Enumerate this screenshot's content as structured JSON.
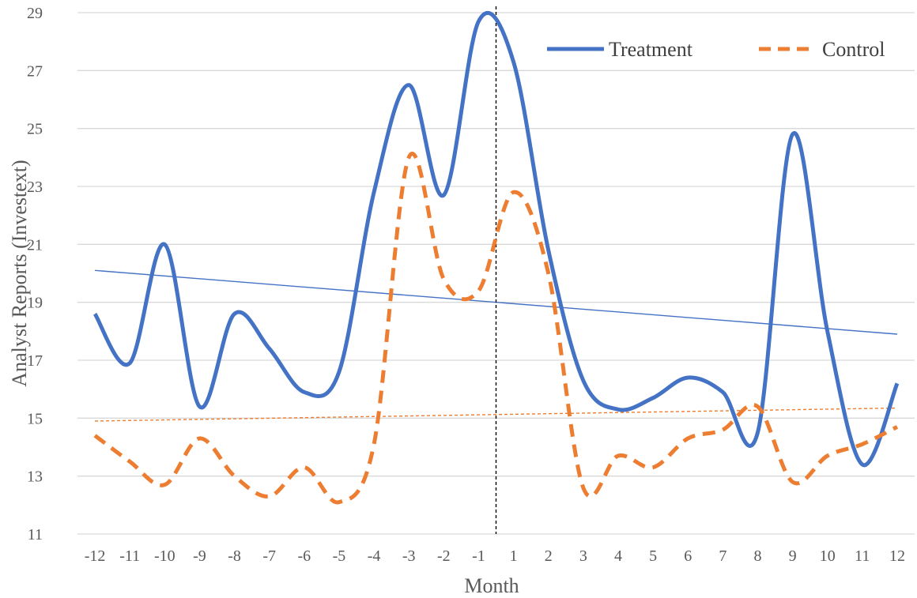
{
  "chart_data": {
    "type": "line",
    "xlabel": "Month",
    "ylabel": "Analyst Reports (Investext)",
    "categories": [
      "-12",
      "-11",
      "-10",
      "-9",
      "-8",
      "-7",
      "-6",
      "-5",
      "-4",
      "-3",
      "-2",
      "-1",
      "1",
      "2",
      "3",
      "4",
      "5",
      "6",
      "7",
      "8",
      "9",
      "10",
      "11",
      "12"
    ],
    "ylim": [
      11,
      29
    ],
    "yticks": [
      11,
      13,
      15,
      17,
      19,
      21,
      23,
      25,
      27,
      29
    ],
    "grid": true,
    "legend_position": "top-right",
    "event_marker": "between -1 and 1",
    "series": [
      {
        "name": "Treatment",
        "color": "#4472c4",
        "dash": "solid",
        "values": [
          18.6,
          16.9,
          21.0,
          15.4,
          18.6,
          17.4,
          15.9,
          16.6,
          22.8,
          26.5,
          22.7,
          28.7,
          27.3,
          20.8,
          16.3,
          15.3,
          15.7,
          16.4,
          15.9,
          14.5,
          24.8,
          18.0,
          13.4,
          16.2
        ]
      },
      {
        "name": "Control",
        "color": "#ed7d31",
        "dash": "dashed",
        "values": [
          14.4,
          13.5,
          12.7,
          14.3,
          13.0,
          12.3,
          13.3,
          12.1,
          14.1,
          24.0,
          19.8,
          19.4,
          22.8,
          20.0,
          12.6,
          13.7,
          13.3,
          14.3,
          14.6,
          15.4,
          12.8,
          13.7,
          14.1,
          14.7
        ]
      }
    ],
    "trendlines": [
      {
        "series": "Treatment",
        "color": "#4472c4",
        "start": 20.1,
        "end": 17.9
      },
      {
        "series": "Control",
        "color": "#ed7d31",
        "start": 14.9,
        "end": 15.35
      }
    ]
  }
}
